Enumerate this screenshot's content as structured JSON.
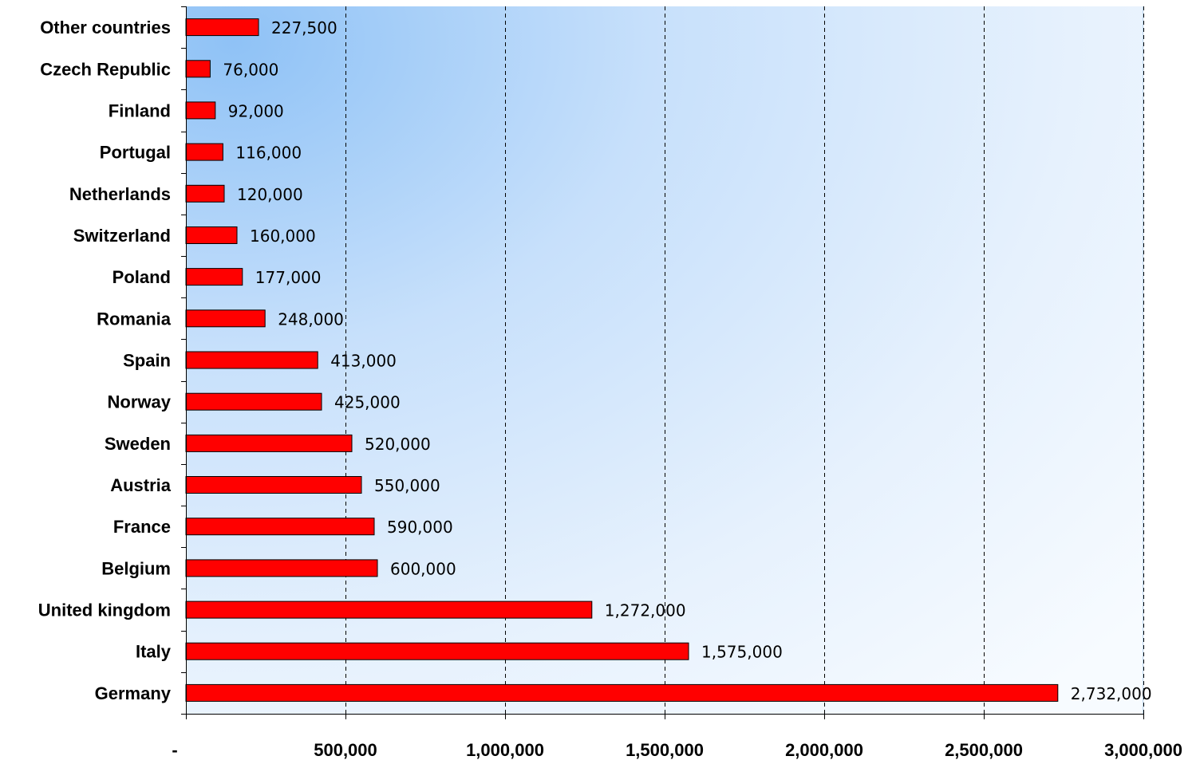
{
  "chart_data": {
    "type": "bar",
    "orientation": "horizontal",
    "categories": [
      "Other countries",
      "Czech Republic",
      "Finland",
      "Portugal",
      "Netherlands",
      "Switzerland",
      "Poland",
      "Romania",
      "Spain",
      "Norway",
      "Sweden",
      "Austria",
      "France",
      "Belgium",
      "United kingdom",
      "Italy",
      "Germany"
    ],
    "values": [
      227500,
      76000,
      92000,
      116000,
      120000,
      160000,
      177000,
      248000,
      413000,
      425000,
      520000,
      550000,
      590000,
      600000,
      1272000,
      1575000,
      2732000
    ],
    "value_labels": [
      "227,500",
      "76,000",
      "92,000",
      "116,000",
      "120,000",
      "160,000",
      "177,000",
      "248,000",
      "413,000",
      "425,000",
      "520,000",
      "550,000",
      "590,000",
      "600,000",
      "1,272,000",
      "1,575,000",
      "2,732,000"
    ],
    "x_ticks": [
      0,
      500000,
      1000000,
      1500000,
      2000000,
      2500000,
      3000000
    ],
    "x_tick_labels": [
      "-",
      "500,000",
      "1,000,000",
      "1,500,000",
      "2,000,000",
      "2,500,000",
      "3,000,000"
    ],
    "xlim": [
      0,
      3000000
    ],
    "title": "",
    "xlabel": "",
    "ylabel": "",
    "grid": "vertical dashed",
    "bar_color": "#ff0000",
    "bar_border_color": "#000000",
    "plot_background": "#a8d0fa to #f4f9ff gradient"
  }
}
